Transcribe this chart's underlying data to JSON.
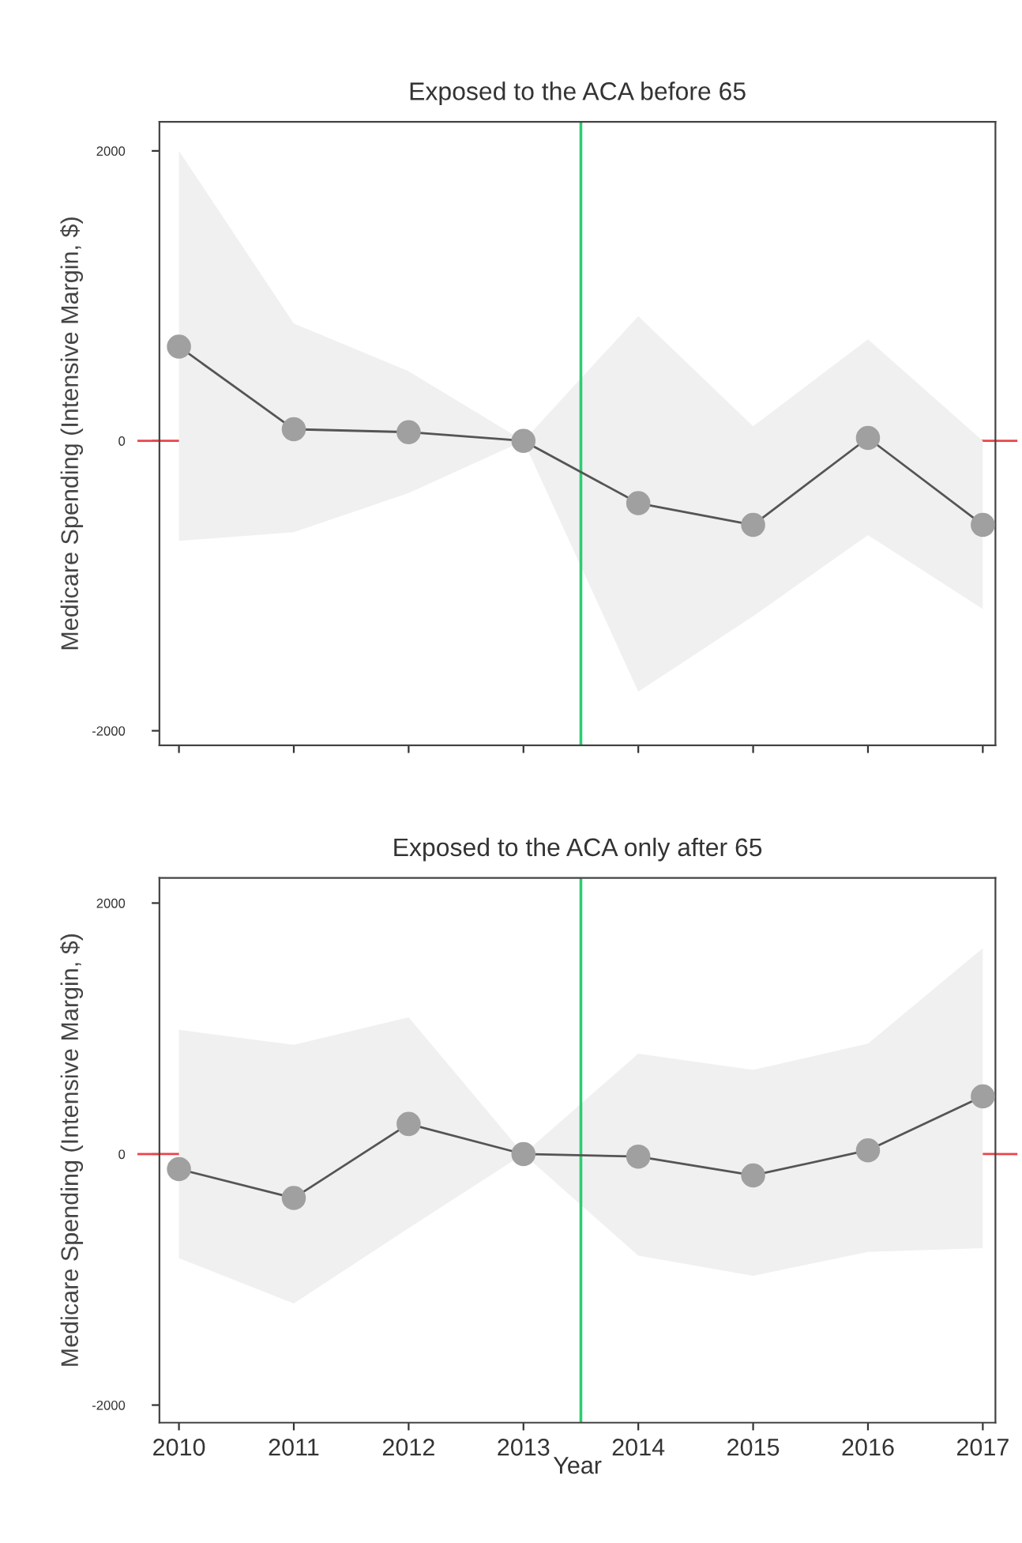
{
  "chart_data": [
    {
      "type": "line",
      "title": "Exposed to the ACA before 65",
      "ylabel": "Medicare Spending (Intensive Margin, $)",
      "x": [
        2010,
        2011,
        2012,
        2013,
        2014,
        2015,
        2016,
        2017
      ],
      "series": [
        {
          "color": "#a0a0a0",
          "values": [
            650,
            80,
            60,
            0,
            -430,
            -580,
            20,
            -580
          ],
          "lower": [
            -690,
            -630,
            -360,
            0,
            -1730,
            -1210,
            -650,
            -1160
          ],
          "upper": [
            2000,
            810,
            480,
            0,
            860,
            100,
            700,
            0
          ]
        }
      ],
      "xlim": [
        2009.83,
        2017.11
      ],
      "ylim": [
        -2100,
        2200
      ],
      "yticks": [
        -2000,
        0,
        2000
      ],
      "xticks": [
        2010,
        2011,
        2012,
        2013,
        2014,
        2015,
        2016,
        2017
      ],
      "tick_labels": "y",
      "marker": "circle",
      "grid": false,
      "legend": false,
      "ref_lines": [
        {
          "axis": "x",
          "value": 2013.5,
          "color": "#2ecc71"
        },
        {
          "axis": "y",
          "value": 0,
          "color": "#e8454a"
        }
      ]
    },
    {
      "type": "line",
      "title": "Exposed to the ACA only after 65",
      "ylabel": "Medicare Spending (Intensive Margin, $)",
      "xlabel": "Year",
      "x": [
        2010,
        2011,
        2012,
        2013,
        2014,
        2015,
        2016,
        2017
      ],
      "series": [
        {
          "color": "#a0a0a0",
          "values": [
            -120,
            -350,
            240,
            0,
            -20,
            -170,
            30,
            460
          ],
          "lower": [
            -830,
            -1190,
            -590,
            0,
            -810,
            -970,
            -780,
            -750
          ],
          "upper": [
            990,
            870,
            1090,
            0,
            800,
            670,
            880,
            1640
          ]
        }
      ],
      "xlim": [
        2009.83,
        2017.11
      ],
      "ylim": [
        -2140,
        2200
      ],
      "yticks": [
        -2000,
        0,
        2000
      ],
      "xticks": [
        2010,
        2011,
        2012,
        2013,
        2014,
        2015,
        2016,
        2017
      ],
      "marker": "circle",
      "grid": false,
      "legend": false,
      "ref_lines": [
        {
          "axis": "x",
          "value": 2013.5,
          "color": "#2ecc71"
        },
        {
          "axis": "y",
          "value": 0,
          "color": "#e8454a"
        }
      ]
    }
  ]
}
